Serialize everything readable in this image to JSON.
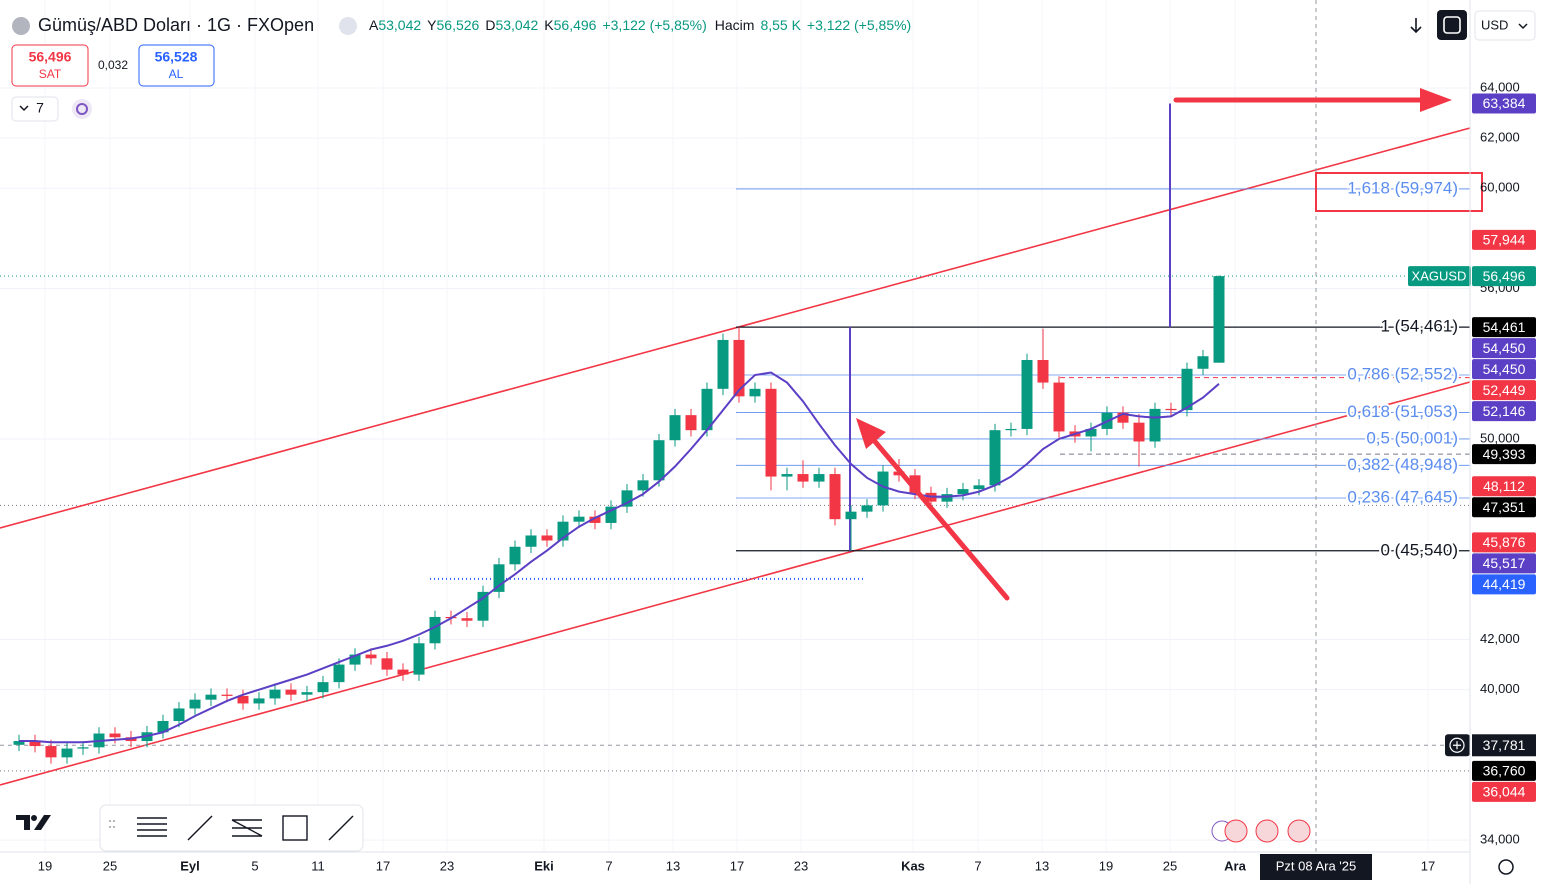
{
  "header": {
    "symbol": "Gümüş/ABD Doları · 1G · FXOpen",
    "ohlc": [
      {
        "key": "A",
        "value": "53,042"
      },
      {
        "key": "Y",
        "value": "56,526"
      },
      {
        "key": "D",
        "value": "53,042"
      },
      {
        "key": "K",
        "value": "56,496"
      }
    ],
    "change": "+3,122 (+5,85%)",
    "volume_label": "Hacim",
    "volume": "8,55 K",
    "volume_change": "+3,122 (+5,85%)"
  },
  "trade": {
    "sell_price": "56,496",
    "sell_label": "SAT",
    "spread": "0,032",
    "buy_price": "56,528",
    "buy_label": "AL"
  },
  "indicators_count": "7",
  "currency": "USD",
  "chart_data": {
    "type": "candlestick",
    "colors": {
      "up": "#089981",
      "down": "#f23645"
    },
    "open": [
      37800,
      37950,
      37750,
      37300,
      37650,
      37700,
      38250,
      38100,
      37950,
      38300,
      38750,
      39250,
      39600,
      39800,
      39750,
      39450,
      39650,
      40000,
      39800,
      39900,
      40300,
      41000,
      41400,
      41250,
      40800,
      40600,
      41850,
      42900,
      42850,
      42750,
      43900,
      45000,
      45700,
      46150,
      45950,
      46700,
      46900,
      46650,
      47300,
      47950,
      48350,
      49950,
      50950,
      50350,
      52000,
      53950,
      51700,
      52000,
      48500,
      48600,
      48300,
      48600,
      46800,
      47100,
      47350,
      48700,
      48550,
      47850,
      47500,
      47800,
      48000,
      48150,
      50350,
      50400,
      53150,
      52250,
      50300,
      50100,
      50400,
      51050,
      50650,
      49900,
      51200,
      51150,
      52800,
      53042
    ],
    "high": [
      38200,
      38200,
      38000,
      37900,
      37950,
      38500,
      38500,
      38350,
      38550,
      39000,
      39500,
      39850,
      40050,
      40050,
      40000,
      39900,
      40250,
      40250,
      40150,
      40550,
      41250,
      41650,
      41650,
      41500,
      41050,
      42100,
      43150,
      43150,
      43100,
      44150,
      45250,
      45950,
      46400,
      46400,
      46950,
      47150,
      47150,
      47550,
      48200,
      48600,
      50200,
      51200,
      51200,
      52250,
      54200,
      54461,
      52250,
      52250,
      48850,
      49150,
      48850,
      48850,
      47350,
      47600,
      48950,
      49200,
      48800,
      48100,
      48050,
      48250,
      48400,
      50600,
      50650,
      53400,
      54400,
      52500,
      50550,
      50650,
      51300,
      51300,
      51000,
      51450,
      51450,
      53050,
      53550,
      56526
    ],
    "low": [
      37550,
      37500,
      37050,
      37050,
      37400,
      37450,
      37850,
      37700,
      37700,
      38050,
      38500,
      39000,
      39350,
      39500,
      39200,
      39200,
      39400,
      39550,
      39550,
      39650,
      40050,
      40750,
      41000,
      40550,
      40350,
      40350,
      41600,
      42600,
      42500,
      42500,
      43650,
      44750,
      45450,
      45700,
      45700,
      46450,
      46400,
      46400,
      47050,
      47700,
      48100,
      49700,
      50100,
      50100,
      51750,
      51450,
      51450,
      47950,
      47950,
      48050,
      48050,
      46550,
      45540,
      46850,
      47100,
      48300,
      47600,
      47250,
      47250,
      47550,
      47750,
      47900,
      50100,
      50150,
      52000,
      50050,
      49850,
      49500,
      50150,
      50400,
      48900,
      49650,
      50900,
      50900,
      52550,
      53042
    ],
    "close": [
      37950,
      37750,
      37300,
      37650,
      37700,
      38250,
      38100,
      37950,
      38300,
      38750,
      39250,
      39600,
      39800,
      39750,
      39450,
      39650,
      40000,
      39800,
      39900,
      40300,
      41000,
      41400,
      41250,
      40800,
      40600,
      41850,
      42900,
      42850,
      42750,
      43900,
      45000,
      45700,
      46150,
      45950,
      46700,
      46900,
      46650,
      47300,
      47950,
      48350,
      49950,
      50950,
      50350,
      52000,
      53950,
      51700,
      52000,
      48500,
      48600,
      48300,
      48600,
      46800,
      47100,
      47350,
      48700,
      48550,
      47850,
      47500,
      47800,
      48000,
      48150,
      50350,
      50400,
      53150,
      52250,
      50300,
      50100,
      50400,
      51050,
      50650,
      49900,
      51200,
      51150,
      52800,
      53300,
      56496
    ],
    "ma": {
      "color": "#5b3fc4",
      "values": [
        37950,
        37950,
        37900,
        37900,
        37900,
        37950,
        38000,
        38050,
        38150,
        38300,
        38600,
        38950,
        39250,
        39550,
        39800,
        40000,
        40200,
        40400,
        40600,
        40850,
        41100,
        41350,
        41600,
        41750,
        41950,
        42200,
        42500,
        42850,
        43250,
        43650,
        44150,
        44600,
        45100,
        45550,
        46050,
        46500,
        46850,
        47150,
        47450,
        47800,
        48300,
        48900,
        49600,
        50350,
        51150,
        51950,
        52550,
        52650,
        52250,
        51500,
        50600,
        49750,
        49000,
        48450,
        48100,
        47900,
        47800,
        47700,
        47700,
        47750,
        47900,
        48150,
        48500,
        49000,
        49600,
        50000,
        50200,
        50400,
        50700,
        51000,
        50900,
        50850,
        50900,
        51250,
        51650,
        52200
      ]
    },
    "ylim": [
      33524,
      67191
    ],
    "yticks": [
      {
        "value": 64000,
        "label": "64,000"
      },
      {
        "value": 62000,
        "label": "62,000"
      },
      {
        "value": 60000,
        "label": "60,000"
      },
      {
        "value": 56000,
        "label": "56,000"
      },
      {
        "value": 50000,
        "label": "50,000"
      },
      {
        "value": 42000,
        "label": "42,000"
      },
      {
        "value": 40000,
        "label": "40,000"
      },
      {
        "value": 34000,
        "label": "34,000"
      }
    ],
    "grid": true,
    "x_labels": [
      "19",
      "25",
      "Eyl",
      "5",
      "11",
      "17",
      "23",
      "Eki",
      "7",
      "13",
      "17",
      "23",
      "Kas",
      "7",
      "13",
      "19",
      "25",
      "Ara",
      "17"
    ],
    "crosshair": {
      "x_label": "Pzt 08 Ara '25",
      "y": {
        "value": 37781,
        "label": "37,781"
      }
    },
    "channel": {
      "color": "#f23645",
      "upper": [
        46448,
        62404
      ],
      "lower": [
        36196,
        52272
      ]
    },
    "measures": {
      "color": "#5b3fc4",
      "items": [
        {
          "from": 45540,
          "to": 54461
        },
        {
          "from": 54461,
          "to": 63384
        }
      ]
    },
    "fib": {
      "line_color": "#5b8def",
      "levels": [
        {
          "value": 59974,
          "label": "1,618 (59,974)",
          "color": "#5b8def"
        },
        {
          "value": 54461,
          "label": "1 (54,461)",
          "color": "#131722"
        },
        {
          "value": 52552,
          "label": "0,786 (52,552)",
          "color": "#5b8def"
        },
        {
          "value": 51053,
          "label": "0,618 (51,053)",
          "color": "#5b8def"
        },
        {
          "value": 50001,
          "label": "0,5 (50,001)",
          "color": "#5b8def"
        },
        {
          "value": 48948,
          "label": "0,382 (48,948)",
          "color": "#5b8def"
        },
        {
          "value": 47645,
          "label": "0,236 (47,645)",
          "color": "#5b8def"
        },
        {
          "value": 45540,
          "label": "0 (45,540)",
          "color": "#131722"
        }
      ]
    },
    "price_labels": [
      {
        "value": 63384,
        "label": "63,384",
        "color": "#5b3fc4"
      },
      {
        "value": 57944,
        "label": "57,944",
        "color": "#f23645"
      },
      {
        "value": 56496,
        "label": "56,496",
        "name": "XAGUSD",
        "color": "#089981",
        "line": "dotted"
      },
      {
        "value": 54461,
        "label": "54,461",
        "color": "#000000"
      },
      {
        "value": 54450,
        "label": "54,450",
        "color": "#5b3fc4"
      },
      {
        "value": 54450,
        "label": "54,450",
        "color": "#5b3fc4"
      },
      {
        "value": 52449,
        "label": "52,449",
        "color": "#f23645",
        "line": "dashed"
      },
      {
        "value": 52146,
        "label": "52,146",
        "color": "#5b3fc4"
      },
      {
        "value": 49393,
        "label": "49,393",
        "color": "#000000",
        "line": "dashed"
      },
      {
        "value": 48112,
        "label": "48,112",
        "color": "#f23645"
      },
      {
        "value": 47351,
        "label": "47,351",
        "color": "#000000",
        "line": "dotted"
      },
      {
        "value": 45876,
        "label": "45,876",
        "color": "#f23645"
      },
      {
        "value": 45517,
        "label": "45,517",
        "color": "#5b3fc4"
      },
      {
        "value": 44419,
        "label": "44,419",
        "color": "#2962ff",
        "line": "dotted"
      },
      {
        "value": 36760,
        "label": "36,760",
        "color": "#000000",
        "line": "dotted"
      },
      {
        "value": 36044,
        "label": "36,044",
        "color": "#f23645"
      }
    ]
  }
}
